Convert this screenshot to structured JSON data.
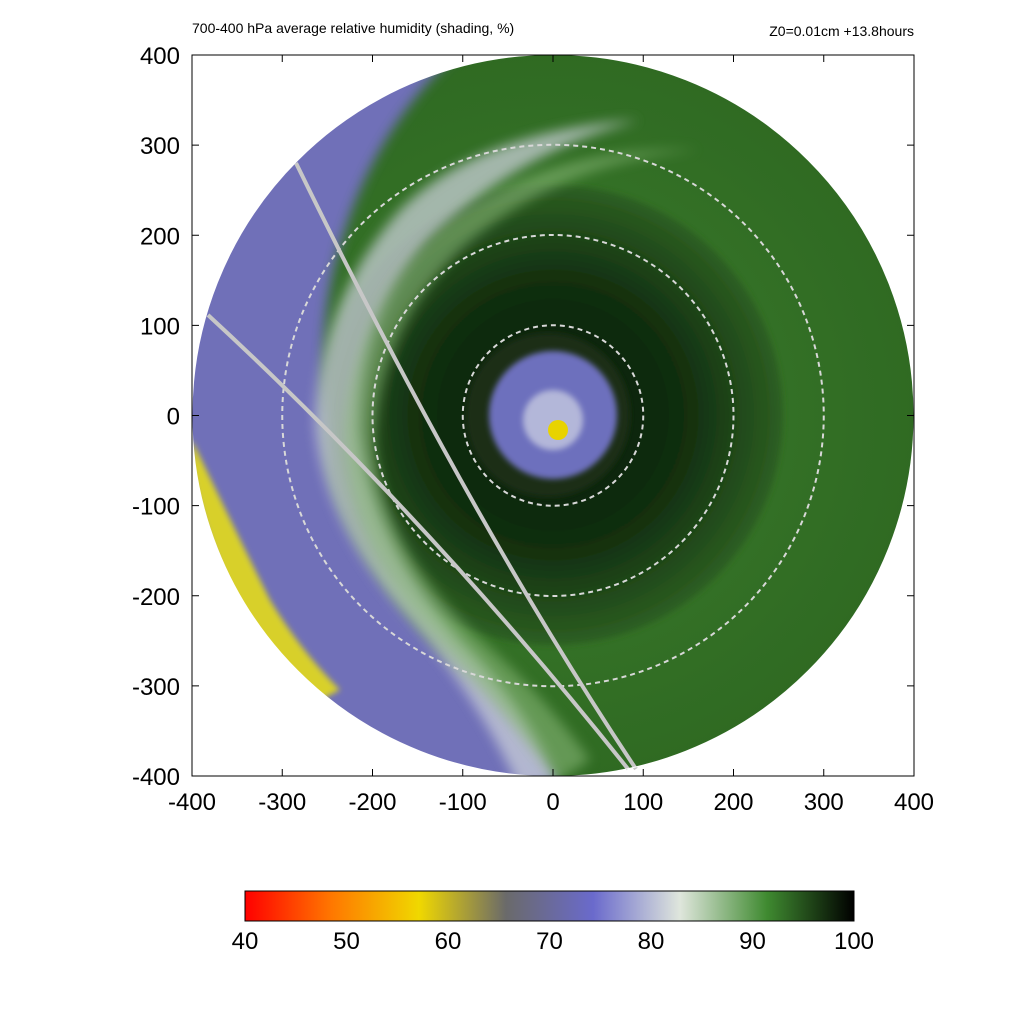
{
  "chart_data": {
    "type": "heatmap",
    "title": "700-400 hPa average relative humidity (shading, %)",
    "subtitle": "Z0=0.01cm  +13.8hours",
    "xlabel": "",
    "ylabel": "",
    "xlim": [
      -400,
      400
    ],
    "ylim": [
      -400,
      400
    ],
    "x_ticks": [
      -400,
      -300,
      -200,
      -100,
      0,
      100,
      200,
      300,
      400
    ],
    "y_ticks": [
      400,
      300,
      200,
      100,
      0,
      -100,
      -200,
      -300,
      -400
    ],
    "x_tick_labels": [
      "-400",
      "-300",
      "-200",
      "-100",
      "0",
      "100",
      "200",
      "300",
      "400"
    ],
    "y_tick_labels": [
      "400",
      "300",
      "200",
      "100",
      "0",
      "-100",
      "-200",
      "-300",
      "-400"
    ],
    "domain_radius": 400,
    "range_rings_radius": [
      100,
      200,
      300
    ],
    "eye_center": [
      5,
      -15
    ],
    "eye_radius": 80,
    "colorbar": {
      "min": 40,
      "max": 100,
      "tick_values": [
        40,
        50,
        60,
        70,
        80,
        90,
        100
      ],
      "tick_labels": [
        "40",
        "50",
        "60",
        "70",
        "80",
        "90",
        "100"
      ],
      "colors": [
        "#ff0000",
        "#ff7800",
        "#f0d800",
        "#6a6a6a",
        "#6a6acc",
        "#dfe6dc",
        "#3f8a30",
        "#000000"
      ]
    },
    "grid": false
  }
}
